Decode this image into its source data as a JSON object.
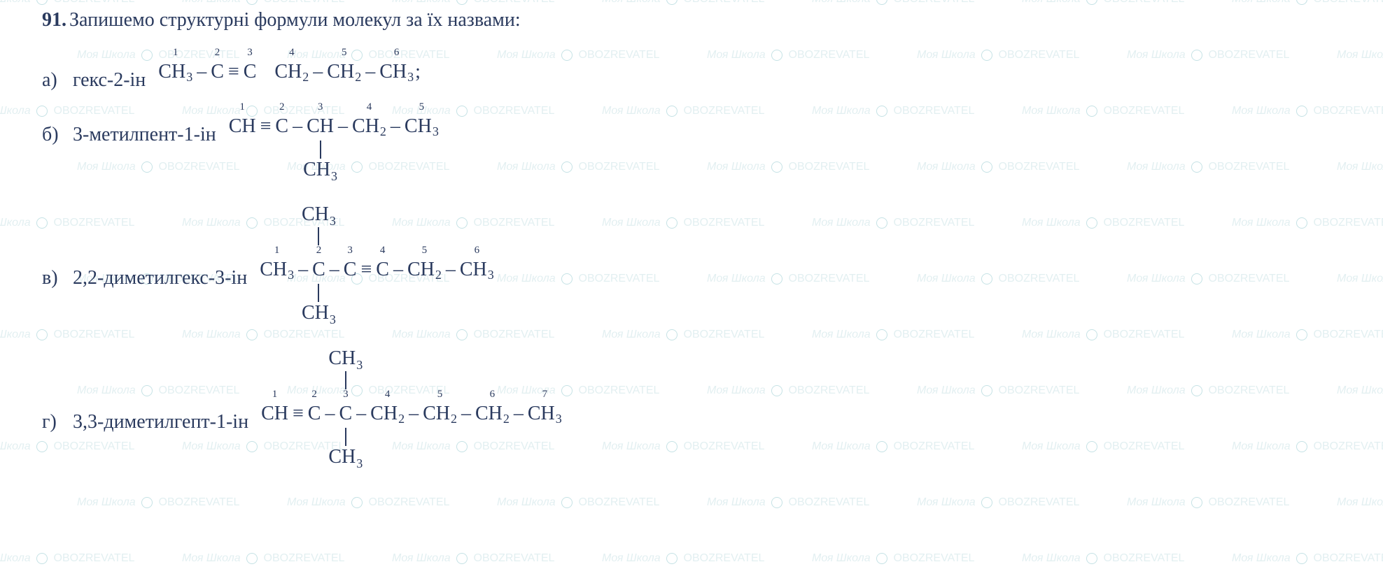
{
  "question_number": "91.",
  "title": "Запишемо структурні формули молекул за їх назвами:",
  "text_color": "#2a3a5e",
  "background_color": "#ffffff",
  "watermark_color": "#d4e8ea",
  "watermark_text_1": "Моя Школа",
  "watermark_text_2": "OBOZREVATEL",
  "items": {
    "a": {
      "label": "а)",
      "name": "гекс-2-ін",
      "terminator": ";"
    },
    "b": {
      "label": "б)",
      "name": "3-метилпент-1-ін"
    },
    "c": {
      "label": "в)",
      "name": "2,2-диметилгекс-3-ін"
    },
    "d": {
      "label": "г)",
      "name": "3,3-диметилгепт-1-ін"
    }
  },
  "carbon_labels": [
    "1",
    "2",
    "3",
    "4",
    "5",
    "6",
    "7"
  ],
  "atoms": {
    "C": "C",
    "H": "H",
    "CH": "CH",
    "CH2": "CH",
    "CH3": "CH"
  },
  "sub2": "2",
  "sub3": "3",
  "bond_single": "–",
  "bond_triple": "≡",
  "branch_CH3": "CH",
  "font_size_main": 28,
  "font_size_carbon_num": 15
}
